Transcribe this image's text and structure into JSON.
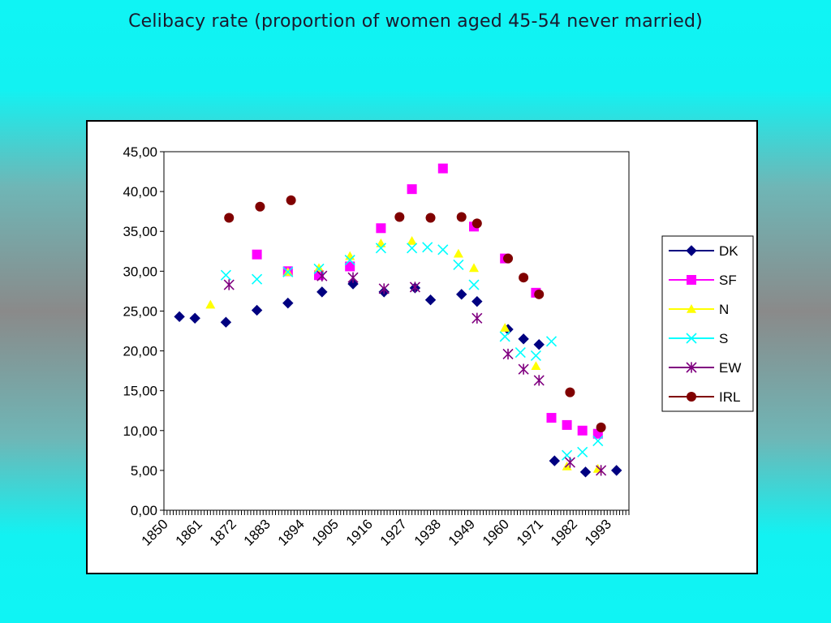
{
  "slide": {
    "title": "Celibacy rate (proportion of women aged 45-54 never married)"
  },
  "chart_data": {
    "type": "scatter",
    "xlabel": "",
    "ylabel": "",
    "xlim": [
      1850,
      2000
    ],
    "ylim": [
      0,
      45
    ],
    "x_ticks": [
      "1850",
      "1861",
      "1872",
      "1883",
      "1894",
      "1905",
      "1916",
      "1927",
      "1938",
      "1949",
      "1960",
      "1971",
      "1982",
      "1993"
    ],
    "y_ticks": [
      "0,00",
      "5,00",
      "10,00",
      "15,00",
      "20,00",
      "25,00",
      "30,00",
      "35,00",
      "40,00",
      "45,00"
    ],
    "grid": false,
    "legend": "right",
    "series": [
      {
        "name": "DK",
        "color": "#000080",
        "marker": "diamond",
        "x": [
          1855,
          1860,
          1870,
          1880,
          1890,
          1901,
          1911,
          1921,
          1931,
          1936,
          1946,
          1951,
          1961,
          1966,
          1971,
          1976,
          1986,
          1996
        ],
        "y": [
          24.3,
          24.1,
          23.6,
          25.1,
          26.0,
          27.4,
          28.4,
          27.4,
          27.9,
          26.4,
          27.1,
          26.2,
          22.7,
          21.5,
          20.8,
          6.2,
          4.8,
          5.0
        ]
      },
      {
        "name": "SF",
        "color": "#ff00ff",
        "marker": "square",
        "x": [
          1880,
          1890,
          1900,
          1910,
          1920,
          1930,
          1940,
          1950,
          1960,
          1970,
          1975,
          1980,
          1985,
          1990
        ],
        "y": [
          32.1,
          30.0,
          29.5,
          30.6,
          35.4,
          40.3,
          42.9,
          35.6,
          31.6,
          27.3,
          11.6,
          10.7,
          10.0,
          9.6
        ]
      },
      {
        "name": "N",
        "color": "#ffff00",
        "marker": "triangle",
        "x": [
          1865,
          1890,
          1900,
          1910,
          1920,
          1930,
          1945,
          1950,
          1960,
          1970,
          1980,
          1990
        ],
        "y": [
          25.8,
          29.9,
          30.4,
          31.9,
          33.5,
          33.8,
          32.2,
          30.4,
          22.9,
          18.1,
          5.5,
          5.2
        ]
      },
      {
        "name": "S",
        "color": "#00ffff",
        "marker": "x",
        "x": [
          1870,
          1880,
          1890,
          1900,
          1910,
          1920,
          1930,
          1935,
          1940,
          1945,
          1950,
          1960,
          1965,
          1970,
          1975,
          1980,
          1985,
          1990
        ],
        "y": [
          29.5,
          29.0,
          29.9,
          30.3,
          31.4,
          32.9,
          32.9,
          33.0,
          32.7,
          30.8,
          28.3,
          21.8,
          19.8,
          19.4,
          21.2,
          6.9,
          7.3,
          8.7
        ]
      },
      {
        "name": "EW",
        "color": "#800080",
        "marker": "star",
        "x": [
          1871,
          1901,
          1911,
          1921,
          1931,
          1951,
          1961,
          1966,
          1971,
          1981,
          1991
        ],
        "y": [
          28.3,
          29.4,
          29.2,
          27.8,
          28.0,
          24.1,
          19.6,
          17.7,
          16.3,
          6.0,
          5.0
        ]
      },
      {
        "name": "IRL",
        "color": "#800000",
        "marker": "circle",
        "x": [
          1871,
          1881,
          1891,
          1926,
          1936,
          1946,
          1951,
          1961,
          1966,
          1971,
          1981,
          1991
        ],
        "y": [
          36.7,
          38.1,
          38.9,
          36.8,
          36.7,
          36.8,
          36.0,
          31.6,
          29.2,
          27.1,
          14.8,
          10.4
        ]
      }
    ]
  }
}
